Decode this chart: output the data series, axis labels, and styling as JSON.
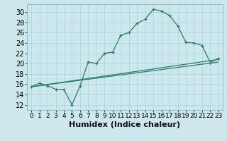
{
  "xlabel": "Humidex (Indice chaleur)",
  "background_color": "#cce8ec",
  "line_color": "#2d7a6a",
  "xlim": [
    -0.5,
    23.5
  ],
  "ylim": [
    11,
    31.5
  ],
  "xticks": [
    0,
    1,
    2,
    3,
    4,
    5,
    6,
    7,
    8,
    9,
    10,
    11,
    12,
    13,
    14,
    15,
    16,
    17,
    18,
    19,
    20,
    21,
    22,
    23
  ],
  "yticks": [
    12,
    14,
    16,
    18,
    20,
    22,
    24,
    26,
    28,
    30
  ],
  "line1_x": [
    0,
    1,
    2,
    3,
    4,
    5,
    6,
    7,
    8,
    9,
    10,
    11,
    12,
    13,
    14,
    15,
    16,
    17,
    18,
    19,
    20,
    21,
    22,
    23
  ],
  "line1_y": [
    15.5,
    16.2,
    15.7,
    15.0,
    15.0,
    12.0,
    15.7,
    20.3,
    20.0,
    22.0,
    22.2,
    25.5,
    26.0,
    27.8,
    28.6,
    30.5,
    30.2,
    29.3,
    27.3,
    24.1,
    24.0,
    23.5,
    20.2,
    21.0
  ],
  "line2_x": [
    0,
    23
  ],
  "line2_y": [
    15.5,
    20.8
  ],
  "line3_x": [
    0,
    23
  ],
  "line3_y": [
    15.5,
    20.3
  ],
  "grid_color": "#aad4d8",
  "font_size_xlabel": 8,
  "font_size_yticks": 7,
  "font_size_xticks": 6.5
}
